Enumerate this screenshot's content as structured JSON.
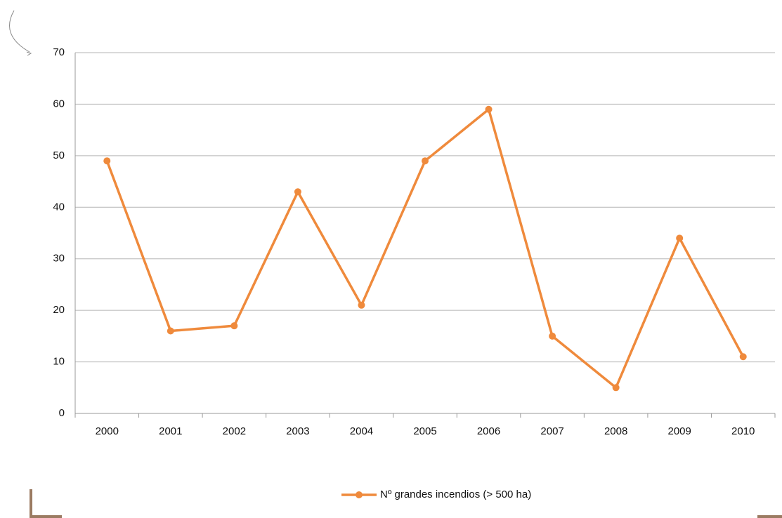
{
  "chart_data": {
    "type": "line",
    "categories": [
      "2000",
      "2001",
      "2002",
      "2003",
      "2004",
      "2005",
      "2006",
      "2007",
      "2008",
      "2009",
      "2010"
    ],
    "series": [
      {
        "name": "Nº grandes incendios (> 500 ha)",
        "color": "#ef8a3c",
        "values": [
          49,
          16,
          17,
          43,
          21,
          49,
          59,
          15,
          5,
          34,
          11
        ]
      }
    ],
    "ylim": [
      0,
      70
    ],
    "yticks": [
      0,
      10,
      20,
      30,
      40,
      50,
      60,
      70
    ],
    "grid": true,
    "legend": "bottom"
  }
}
